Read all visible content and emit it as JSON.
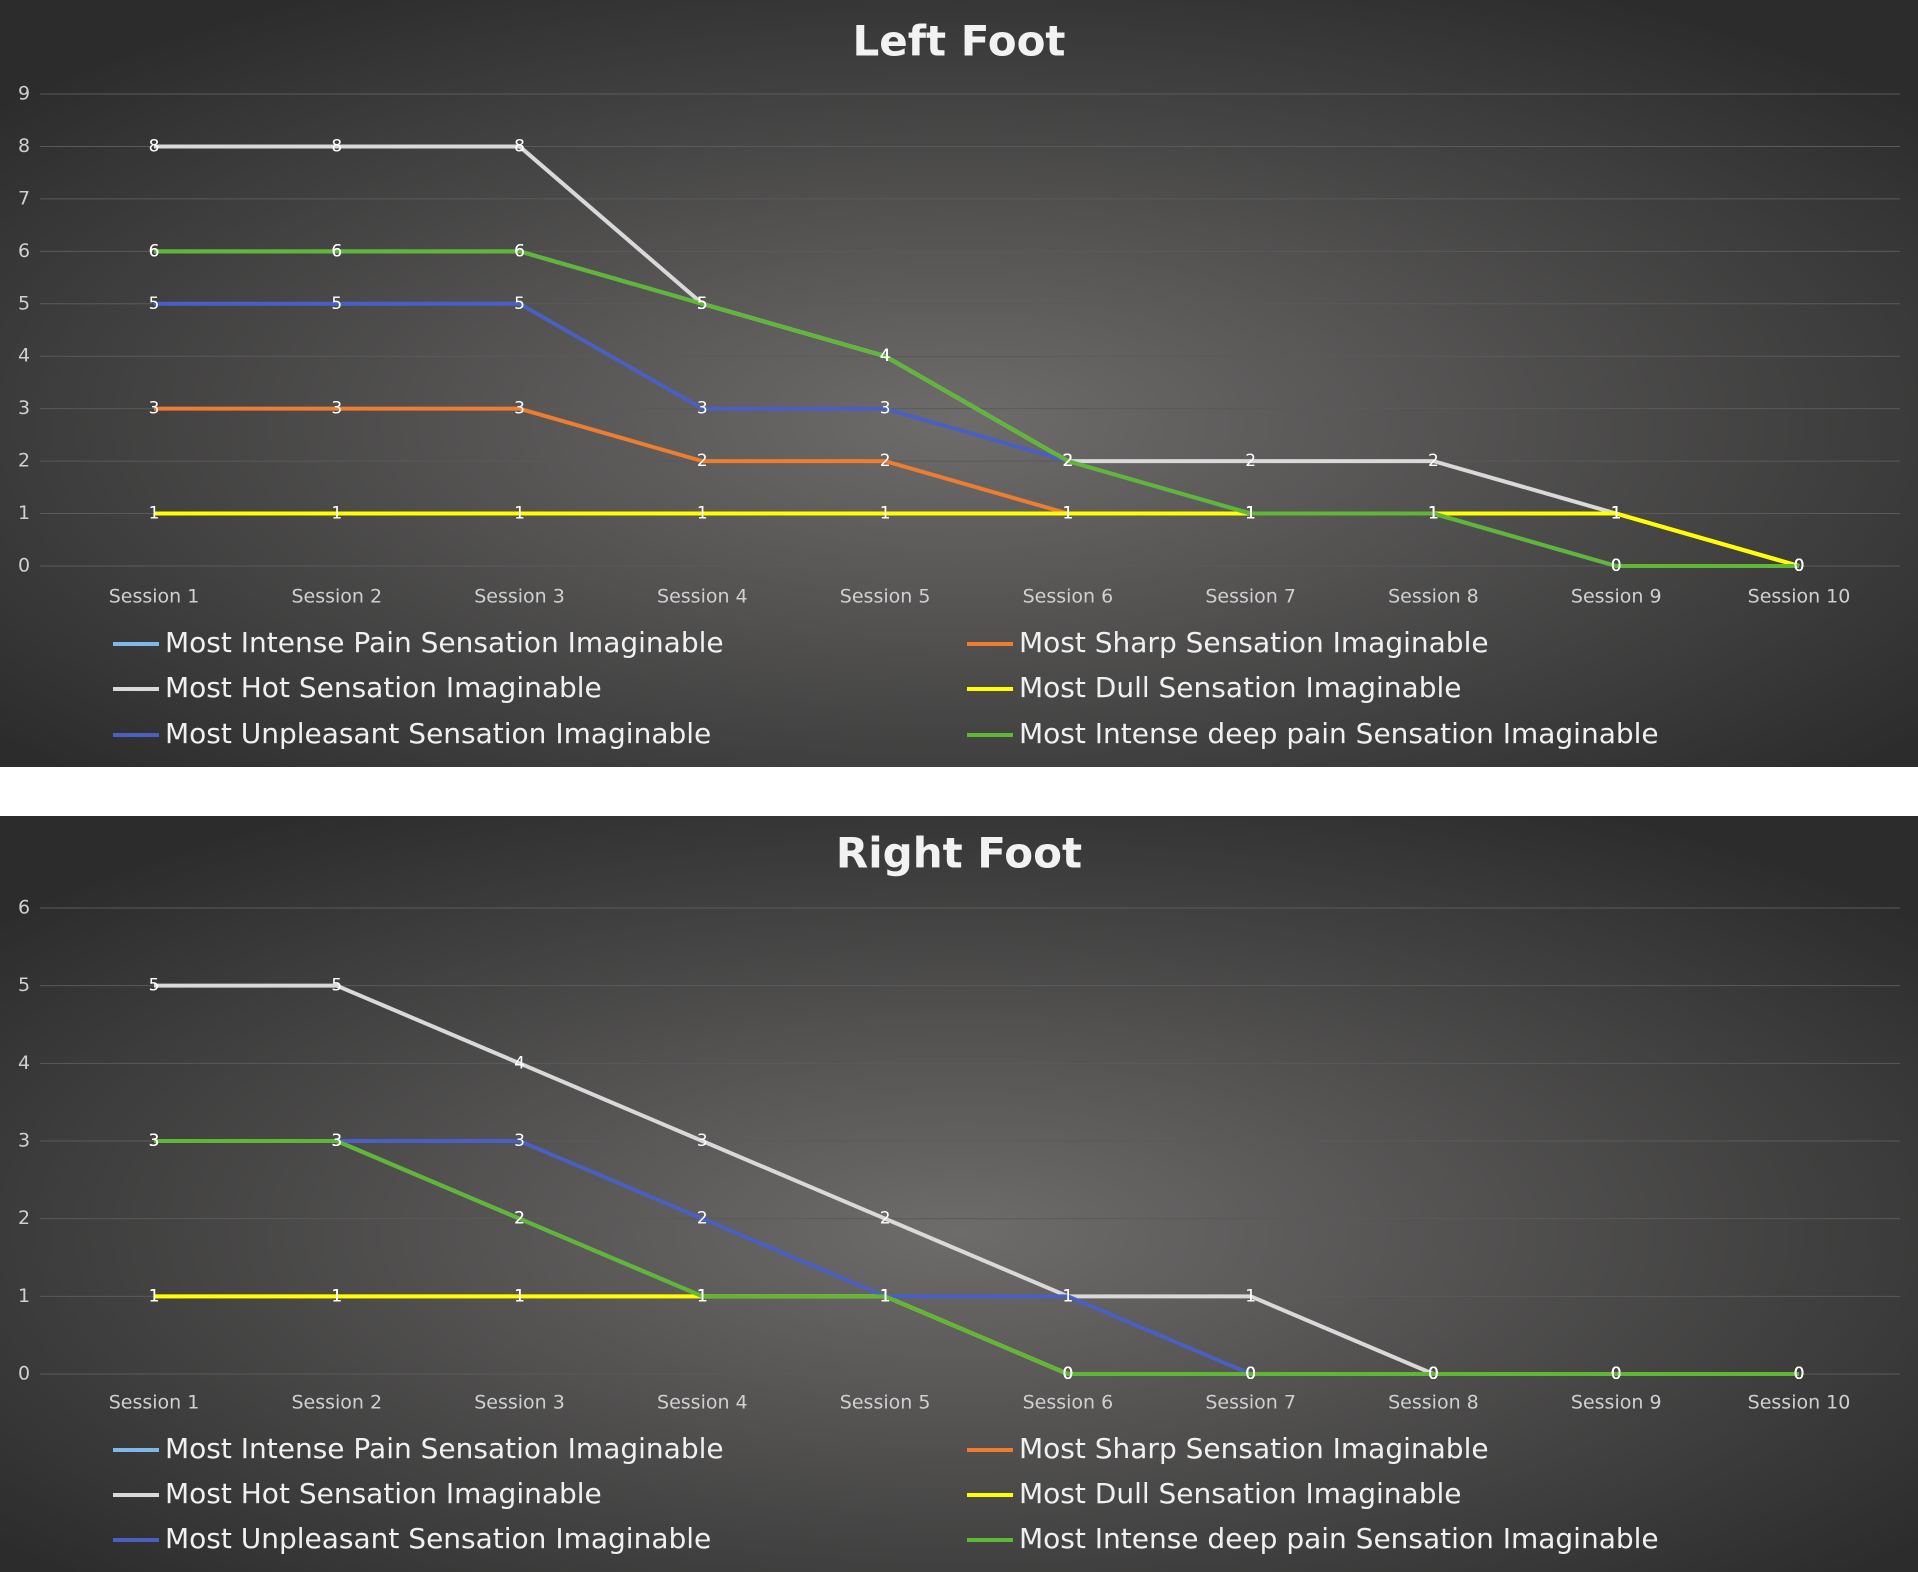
{
  "chart_data": [
    {
      "type": "line",
      "title": "Left Foot",
      "categories": [
        "Session 1",
        "Session 2",
        "Session 3",
        "Session 4",
        "Session 5",
        "Session 6",
        "Session 7",
        "Session 8",
        "Session 9",
        "Session 10"
      ],
      "ylim": [
        0,
        9
      ],
      "yticks": [
        0,
        1,
        2,
        3,
        4,
        5,
        6,
        7,
        8,
        9
      ],
      "grid": true,
      "series": [
        {
          "name": "Most Intense Pain Sensation Imaginable",
          "color": "#7fb8e8",
          "values": [
            6,
            6,
            6,
            5,
            4,
            2,
            1,
            1,
            0,
            0
          ]
        },
        {
          "name": "Most Sharp Sensation Imaginable",
          "color": "#ed7d31",
          "values": [
            3,
            3,
            3,
            2,
            2,
            1,
            1,
            1,
            1,
            0
          ]
        },
        {
          "name": "Most Hot Sensation Imaginable",
          "color": "#d9d9d9",
          "values": [
            8,
            8,
            8,
            5,
            4,
            2,
            2,
            2,
            1,
            0
          ]
        },
        {
          "name": "Most Dull Sensation Imaginable",
          "color": "#ffff00",
          "values": [
            1,
            1,
            1,
            1,
            1,
            1,
            1,
            1,
            1,
            0
          ]
        },
        {
          "name": "Most Unpleasant Sensation Imaginable",
          "color": "#4a5fc1",
          "values": [
            5,
            5,
            5,
            3,
            3,
            2,
            1,
            1,
            0,
            0
          ]
        },
        {
          "name": "Most Intense deep pain Sensation Imaginable",
          "color": "#5fb735",
          "values": [
            6,
            6,
            6,
            5,
            4,
            2,
            1,
            1,
            0,
            0
          ]
        }
      ]
    },
    {
      "type": "line",
      "title": "Right Foot",
      "categories": [
        "Session 1",
        "Session 2",
        "Session 3",
        "Session 4",
        "Session 5",
        "Session 6",
        "Session 7",
        "Session 8",
        "Session 9",
        "Session 10"
      ],
      "ylim": [
        0,
        6
      ],
      "yticks": [
        0,
        1,
        2,
        3,
        4,
        5,
        6
      ],
      "grid": true,
      "series": [
        {
          "name": "Most Intense Pain Sensation Imaginable",
          "color": "#7fb8e8",
          "values": [
            3,
            3,
            2,
            1,
            1,
            0,
            0,
            0,
            0,
            0
          ]
        },
        {
          "name": "Most Sharp Sensation Imaginable",
          "color": "#ed7d31",
          "values": [
            1,
            1,
            1,
            1,
            1,
            0,
            0,
            0,
            0,
            0
          ]
        },
        {
          "name": "Most Hot Sensation Imaginable",
          "color": "#d9d9d9",
          "values": [
            5,
            5,
            4,
            3,
            2,
            1,
            1,
            0,
            0,
            0
          ]
        },
        {
          "name": "Most Dull Sensation Imaginable",
          "color": "#ffff00",
          "values": [
            1,
            1,
            1,
            1,
            1,
            0,
            0,
            0,
            0,
            0
          ]
        },
        {
          "name": "Most Unpleasant Sensation Imaginable",
          "color": "#4a5fc1",
          "values": [
            3,
            3,
            3,
            2,
            1,
            1,
            0,
            0,
            0,
            0
          ]
        },
        {
          "name": "Most Intense deep pain Sensation Imaginable",
          "color": "#5fb735",
          "values": [
            3,
            3,
            2,
            1,
            1,
            0,
            0,
            0,
            0,
            0
          ]
        }
      ]
    }
  ]
}
